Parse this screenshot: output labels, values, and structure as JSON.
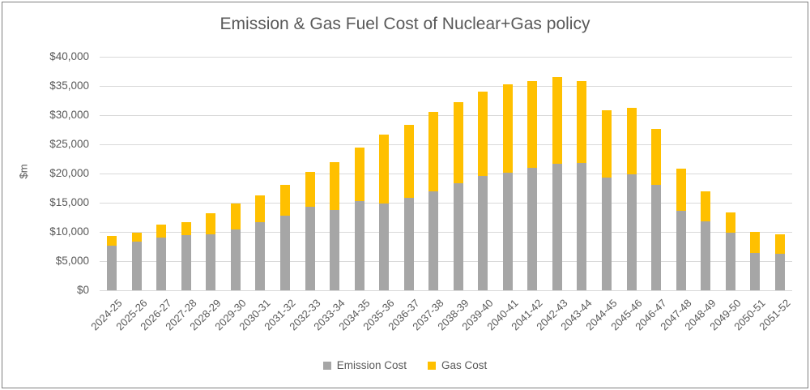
{
  "chart_data": {
    "type": "bar",
    "stacked": true,
    "title": "Emission & Gas Fuel Cost of Nuclear+Gas policy",
    "xlabel": "",
    "ylabel": "$m",
    "ylim": [
      0,
      40000
    ],
    "ytick_step": 5000,
    "ytick_labels": [
      "$0",
      "$5,000",
      "$10,000",
      "$15,000",
      "$20,000",
      "$25,000",
      "$30,000",
      "$35,000",
      "$40,000"
    ],
    "grid": true,
    "legend_position": "bottom",
    "categories": [
      "2024-25",
      "2025-26",
      "2026-27",
      "2027-28",
      "2028-29",
      "2029-30",
      "2030-31",
      "2031-32",
      "2032-33",
      "2033-34",
      "2034-35",
      "2035-36",
      "2036-37",
      "2037-38",
      "2038-39",
      "2039-40",
      "2040-41",
      "2041-42",
      "2042-43",
      "2043-44",
      "2044-45",
      "2045-46",
      "2046-47",
      "2047-48",
      "2048-49",
      "2049-50",
      "2050-51",
      "2051-52"
    ],
    "series": [
      {
        "name": "Emission Cost",
        "color": "#a6a6a6",
        "values": [
          7700,
          8300,
          9000,
          9400,
          9600,
          10400,
          11600,
          12800,
          14300,
          13800,
          15300,
          14800,
          15800,
          16900,
          18300,
          19600,
          20200,
          21000,
          21700,
          21800,
          19300,
          19800,
          18000,
          13600,
          11800,
          9800,
          6400,
          6200
        ]
      },
      {
        "name": "Gas Cost",
        "color": "#ffc000",
        "values": [
          1600,
          1600,
          2200,
          2300,
          3600,
          4500,
          4600,
          5200,
          6000,
          8200,
          9100,
          11800,
          12500,
          13600,
          13900,
          14400,
          15100,
          14900,
          14800,
          14100,
          11500,
          11500,
          9700,
          7300,
          5200,
          3500,
          3600,
          3400
        ]
      }
    ]
  },
  "colors": {
    "text": "#595959",
    "gridline": "#d9d9d9",
    "border": "#7f7f7f"
  }
}
